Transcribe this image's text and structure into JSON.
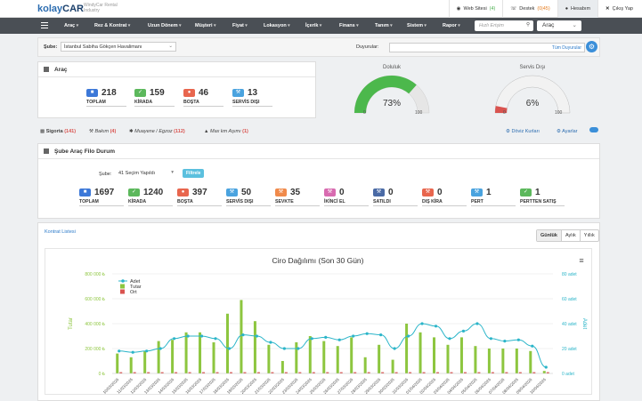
{
  "header": {
    "logo_main": "kolay",
    "logo_accent": "CAR",
    "brand_line1": "WindyCar Rental",
    "brand_line2": "Industry",
    "links": [
      {
        "label": "Web Sitesi",
        "count": "(4)",
        "icon": "globe-icon"
      },
      {
        "label": "Destek",
        "count": "(0|45)",
        "icon": "support-icon"
      },
      {
        "label": "Hesabım",
        "count": "",
        "icon": "user-icon"
      },
      {
        "label": "Çıkış Yap",
        "count": "",
        "icon": "close-icon"
      }
    ]
  },
  "nav": {
    "items": [
      "Araç",
      "Rez & Kontrat",
      "Uzun Dönem",
      "Müşteri",
      "Fiyat",
      "Lokasyon",
      "İçerik",
      "Finans",
      "Tanım",
      "Sistem",
      "Rapor"
    ],
    "search_placeholder": "Hızlı Erişim",
    "search_icon": "search-icon",
    "module_select": "Araç"
  },
  "filter": {
    "sube_label": "Şube:",
    "sube_value": "İstanbul Sabiha Gökçen Havalimanı",
    "duyurular_label": "Duyurular:",
    "duyurular_link": "Tüm Duyurular"
  },
  "arac_panel": {
    "title": "Araç",
    "stats": [
      {
        "value": "218",
        "label": "TOPLAM",
        "color": "#3c78d8",
        "icon": "car-icon"
      },
      {
        "value": "159",
        "label": "KİRADA",
        "color": "#5cb85c",
        "icon": "check-icon"
      },
      {
        "value": "46",
        "label": "BOŞTA",
        "color": "#e8664e",
        "icon": "pin-icon"
      },
      {
        "value": "13",
        "label": "SERVİS DIŞI",
        "color": "#4aa3df",
        "icon": "wrench-icon"
      }
    ]
  },
  "gauges": [
    {
      "title": "Doluluk",
      "value": "73%",
      "fraction": 0.73,
      "min": "0",
      "max": "100",
      "color": "#4cb84c"
    },
    {
      "title": "Servis Dışı",
      "value": "6%",
      "fraction": 0.06,
      "min": "0",
      "max": "100",
      "color": "#d9534f"
    }
  ],
  "alerts": {
    "items": [
      {
        "label": "Sigorta",
        "count": "(141)",
        "icon": "shield-icon"
      },
      {
        "label": "Bakım",
        "count": "(4)",
        "icon": "wrench-icon"
      },
      {
        "label": "Muayene / Egzoz",
        "count": "(112)",
        "icon": "gear-icon"
      },
      {
        "label": "Max km Aşımı",
        "count": "(1)",
        "icon": "road-icon"
      }
    ],
    "doviz": "Döviz Kurları",
    "ayarlar": "Ayarlar"
  },
  "filo": {
    "title": "Şube Araç Filo Durum",
    "sube_label": "Şube:",
    "sube_value": "41 Seçim Yapıldı",
    "filter_button": "Filtrele",
    "stats": [
      {
        "value": "1697",
        "label": "TOPLAM",
        "color": "#3c78d8",
        "icon": "car-icon"
      },
      {
        "value": "1240",
        "label": "KİRADA",
        "color": "#5cb85c",
        "icon": "check-icon"
      },
      {
        "value": "397",
        "label": "BOŞTA",
        "color": "#e8664e",
        "icon": "pin-icon"
      },
      {
        "value": "50",
        "label": "SERVİS DIŞI",
        "color": "#4aa3df",
        "icon": "wrench-icon"
      },
      {
        "value": "35",
        "label": "SEVKTE",
        "color": "#f08a4b",
        "icon": "truck-icon"
      },
      {
        "value": "0",
        "label": "İKİNCİ EL",
        "color": "#d86bb0",
        "icon": "tag-icon"
      },
      {
        "value": "0",
        "label": "SATILDI",
        "color": "#4a6aa5",
        "icon": "sold-icon"
      },
      {
        "value": "0",
        "label": "DIŞ KİRA",
        "color": "#e8664e",
        "icon": "external-icon"
      },
      {
        "value": "1",
        "label": "PERT",
        "color": "#4aa3df",
        "icon": "crash-icon"
      },
      {
        "value": "1",
        "label": "PERTTEN SATIŞ",
        "color": "#5cb85c",
        "icon": "sale-icon"
      }
    ]
  },
  "kontrat": {
    "link": "Kontrat Listesi",
    "tabs": [
      "Günlük",
      "Aylık",
      "Yıllık"
    ],
    "active_tab": "Günlük"
  },
  "chart_data": {
    "type": "bar",
    "title": "Ciro Dağılımı (Son 30 Gün)",
    "ylabel": "Tutar",
    "y2label": "Adet",
    "ylim": [
      0,
      800000
    ],
    "y2lim": [
      0,
      80
    ],
    "yticks": [
      "0 ₺",
      "200 000 ₺",
      "400 000 ₺",
      "600 000 ₺",
      "800 000 ₺"
    ],
    "y2ticks": [
      "0 adet",
      "20 adet",
      "40 adet",
      "60 adet",
      "80 adet"
    ],
    "categories": [
      "10/03/2026",
      "11/03/2026",
      "12/03/2026",
      "13/03/2026",
      "14/03/2026",
      "15/03/2026",
      "16/03/2026",
      "17/03/2026",
      "18/03/2026",
      "19/03/2026",
      "20/03/2026",
      "21/03/2026",
      "22/03/2026",
      "23/03/2026",
      "24/03/2026",
      "25/03/2026",
      "26/03/2026",
      "27/03/2026",
      "28/03/2026",
      "29/03/2026",
      "30/03/2026",
      "31/03/2026",
      "01/04/2026",
      "02/04/2026",
      "03/04/2026",
      "04/04/2026",
      "05/04/2026",
      "06/04/2026",
      "07/04/2026",
      "08/04/2026",
      "09/04/2026",
      "10/04/2026"
    ],
    "series": [
      {
        "name": "Adet",
        "type": "line",
        "axis": "right",
        "color": "#2bb5c9",
        "values": [
          18,
          17,
          18,
          20,
          28,
          30,
          30,
          28,
          20,
          31,
          30,
          25,
          20,
          20,
          28,
          29,
          27,
          30,
          32,
          31,
          20,
          30,
          40,
          38,
          28,
          34,
          40,
          28,
          26,
          27,
          22,
          5
        ]
      },
      {
        "name": "Tutar",
        "type": "bar",
        "axis": "left",
        "color": "#8dc63f",
        "values": [
          160000,
          130000,
          180000,
          260000,
          270000,
          330000,
          330000,
          250000,
          480000,
          590000,
          420000,
          230000,
          100000,
          250000,
          300000,
          260000,
          220000,
          290000,
          130000,
          230000,
          110000,
          400000,
          330000,
          290000,
          230000,
          290000,
          220000,
          200000,
          200000,
          200000,
          180000,
          20000
        ]
      },
      {
        "name": "Ort",
        "type": "bar",
        "axis": "left",
        "color": "#d9534f",
        "values": [
          10000,
          10000,
          10000,
          10000,
          10000,
          10000,
          10000,
          10000,
          10000,
          10000,
          10000,
          10000,
          10000,
          10000,
          10000,
          10000,
          10000,
          10000,
          10000,
          10000,
          10000,
          10000,
          10000,
          10000,
          10000,
          10000,
          10000,
          10000,
          10000,
          10000,
          10000,
          10000
        ]
      }
    ],
    "legend": "top-left"
  }
}
